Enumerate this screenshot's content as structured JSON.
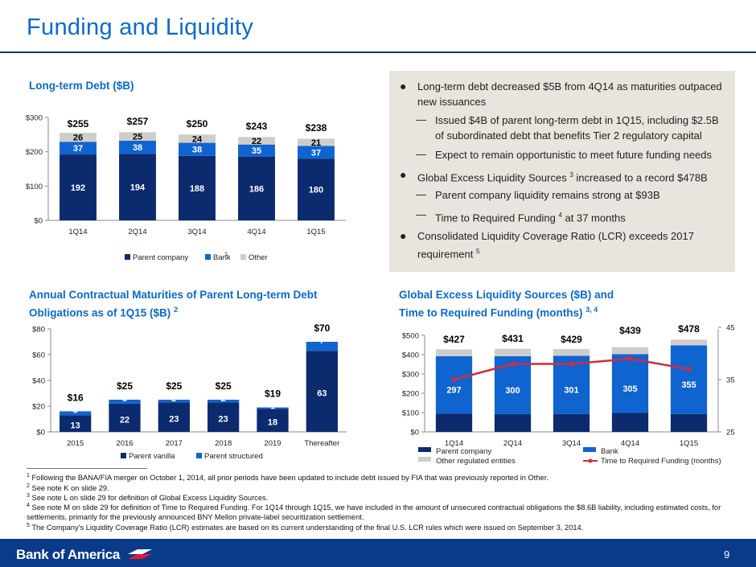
{
  "title": "Funding and Liquidity",
  "colors": {
    "dark_navy": "#0c2a6e",
    "bright_blue": "#0f64d0",
    "grey": "#cfcdca",
    "red_line": "#d42b3a",
    "accent_blue": "#0a6ad0"
  },
  "ltd_title": "Long-term Debt ($B)",
  "mat_title_1": "Annual Contractual Maturities of Parent Long-term Debt",
  "mat_title_2": "Obligations as of 1Q15 ($B)",
  "mat_title_sup": "2",
  "gel_title_1": "Global Excess Liquidity Sources ($B) and",
  "gel_title_2": "Time to Required Funding (months)",
  "gel_title_sup": "3, 4",
  "bullets": {
    "b1": "Long-term debt decreased $5B from 4Q14 as maturities outpaced new issuances",
    "b1_s1": "Issued $4B of parent long-term debt in 1Q15, including $2.5B of subordinated debt that benefits Tier 2 regulatory capital",
    "b1_s2": "Expect to remain opportunistic to meet future funding needs",
    "b2_pre": "Global Excess Liquidity Sources",
    "b2_sup": "3",
    "b2_post": "increased to a record $478B",
    "b2_s1": "Parent company liquidity remains strong at $93B",
    "b2_s2_pre": "Time to Required Funding",
    "b2_s2_sup": "4",
    "b2_s2_post": "at 37 months",
    "b3": "Consolidated Liquidity Coverage Ratio (LCR) exceeds 2017 requirement",
    "b3_sup": "5"
  },
  "chart_data": [
    {
      "type": "bar",
      "stacked": true,
      "title": "Long-term Debt ($B)",
      "categories": [
        "1Q14",
        "2Q14",
        "3Q14",
        "4Q14",
        "1Q15"
      ],
      "series": [
        {
          "name": "Parent company",
          "values": [
            192,
            194,
            188,
            186,
            180
          ],
          "color": "#0c2a6e"
        },
        {
          "name": "Bank",
          "values": [
            37,
            38,
            38,
            35,
            37
          ],
          "color": "#0f64d0"
        },
        {
          "name": "Other",
          "values": [
            26,
            25,
            24,
            22,
            21
          ],
          "color": "#cfcdca"
        }
      ],
      "totals": [
        "$255",
        "$257",
        "$250",
        "$243",
        "$238"
      ],
      "ylim": [
        0,
        300
      ],
      "yticks": [
        "$0",
        "$100",
        "$200",
        "$300"
      ],
      "legend_sup": "1",
      "legend_position": "bottom"
    },
    {
      "type": "bar",
      "stacked": true,
      "categories": [
        "2015",
        "2016",
        "2017",
        "2018",
        "2019",
        "Thereafter"
      ],
      "series": [
        {
          "name": "Parent vanilla",
          "values": [
            13,
            22,
            23,
            23,
            18,
            63
          ],
          "color": "#0c2a6e"
        },
        {
          "name": "Parent structured",
          "values": [
            3,
            3,
            2,
            2,
            1,
            7
          ],
          "color": "#0f64d0"
        }
      ],
      "totals": [
        "$16",
        "$25",
        "$25",
        "$25",
        "$19",
        "$70"
      ],
      "ylim": [
        0,
        80
      ],
      "yticks": [
        "$0",
        "$20",
        "$40",
        "$60",
        "$80"
      ],
      "legend_position": "bottom"
    },
    {
      "type": "bar+line",
      "stacked": true,
      "categories": [
        "1Q14",
        "2Q14",
        "3Q14",
        "4Q14",
        "1Q15"
      ],
      "series": [
        {
          "name": "Parent company",
          "values": [
            95,
            92,
            93,
            98,
            93
          ],
          "color": "#0c2a6e"
        },
        {
          "name": "Bank",
          "values": [
            297,
            300,
            301,
            305,
            355
          ],
          "color": "#0f64d0"
        },
        {
          "name": "Other regulated entities",
          "values": [
            35,
            39,
            35,
            36,
            30
          ],
          "color": "#cfcdca"
        }
      ],
      "totals": [
        "$427",
        "$431",
        "$429",
        "$439",
        "$478"
      ],
      "line": {
        "name": "Time to Required Funding (months)",
        "values": [
          35,
          38,
          38,
          39,
          37
        ],
        "color": "#d42b3a"
      },
      "ylim": [
        0,
        500
      ],
      "yticks": [
        "$0",
        "$100",
        "$200",
        "$300",
        "$400",
        "$500"
      ],
      "y2lim": [
        25,
        45
      ],
      "y2ticks": [
        "25",
        "35",
        "45"
      ],
      "legend_position": "bottom"
    }
  ],
  "footnotes": [
    {
      "num": "1",
      "text": "Following the BANA/FIA merger on October 1, 2014, all prior periods have been updated to include debt issued by FIA that was previously reported in Other."
    },
    {
      "num": "2",
      "text": "See note K on slide 29."
    },
    {
      "num": "3",
      "text": "See note L on slide 29 for definition of Global Excess Liquidity Sources."
    },
    {
      "num": "4",
      "text": "See note M on slide 29 for definition of Time to Required Funding. For 1Q14 through 1Q15, we have included in the amount of unsecured contractual obligations the $8.6B liability, including estimated costs, for settlements, primarily for the previously announced BNY Mellon private-label securitization settlement."
    },
    {
      "num": "5",
      "text": "The Company's Liquidity Coverage Ratio (LCR) estimates are based on its current understanding of the final U.S. LCR rules which were issued on September 3, 2014."
    }
  ],
  "logo_text": "Bank of America",
  "page_number": "9"
}
